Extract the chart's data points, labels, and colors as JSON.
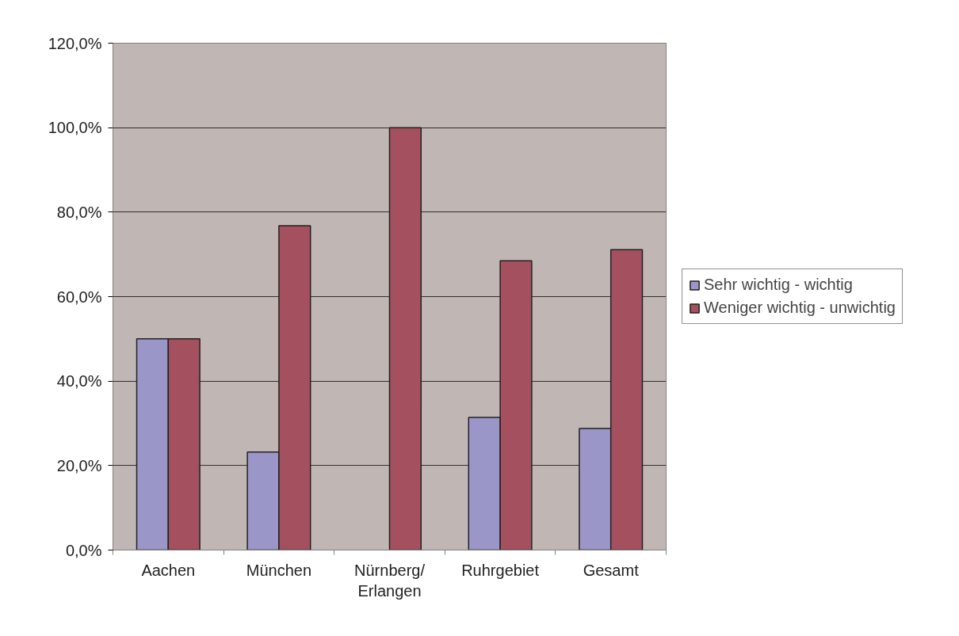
{
  "chart_data": {
    "type": "bar",
    "categories": [
      "Aachen",
      "München",
      "Nürnberg/\nErlangen",
      "Ruhrgebiet",
      "Gesamt"
    ],
    "series": [
      {
        "name": "Sehr wichtig - wichtig",
        "color": "#9b96c8",
        "values": [
          50.0,
          23.2,
          0,
          31.4,
          28.8
        ]
      },
      {
        "name": "Weniger wichtig - unwichtig",
        "color": "#a5505e",
        "values": [
          50.0,
          76.8,
          100.0,
          68.5,
          71.1
        ]
      }
    ],
    "ylim": [
      0,
      120
    ],
    "yticks": [
      {
        "value": 0,
        "label": "0,0%"
      },
      {
        "value": 20,
        "label": "20,0%"
      },
      {
        "value": 40,
        "label": "40,0%"
      },
      {
        "value": 60,
        "label": "60,0%"
      },
      {
        "value": 80,
        "label": "80,0%"
      },
      {
        "value": 100,
        "label": "100,0%"
      },
      {
        "value": 120,
        "label": "120,0%"
      }
    ],
    "grid": "y",
    "legend": "right"
  }
}
